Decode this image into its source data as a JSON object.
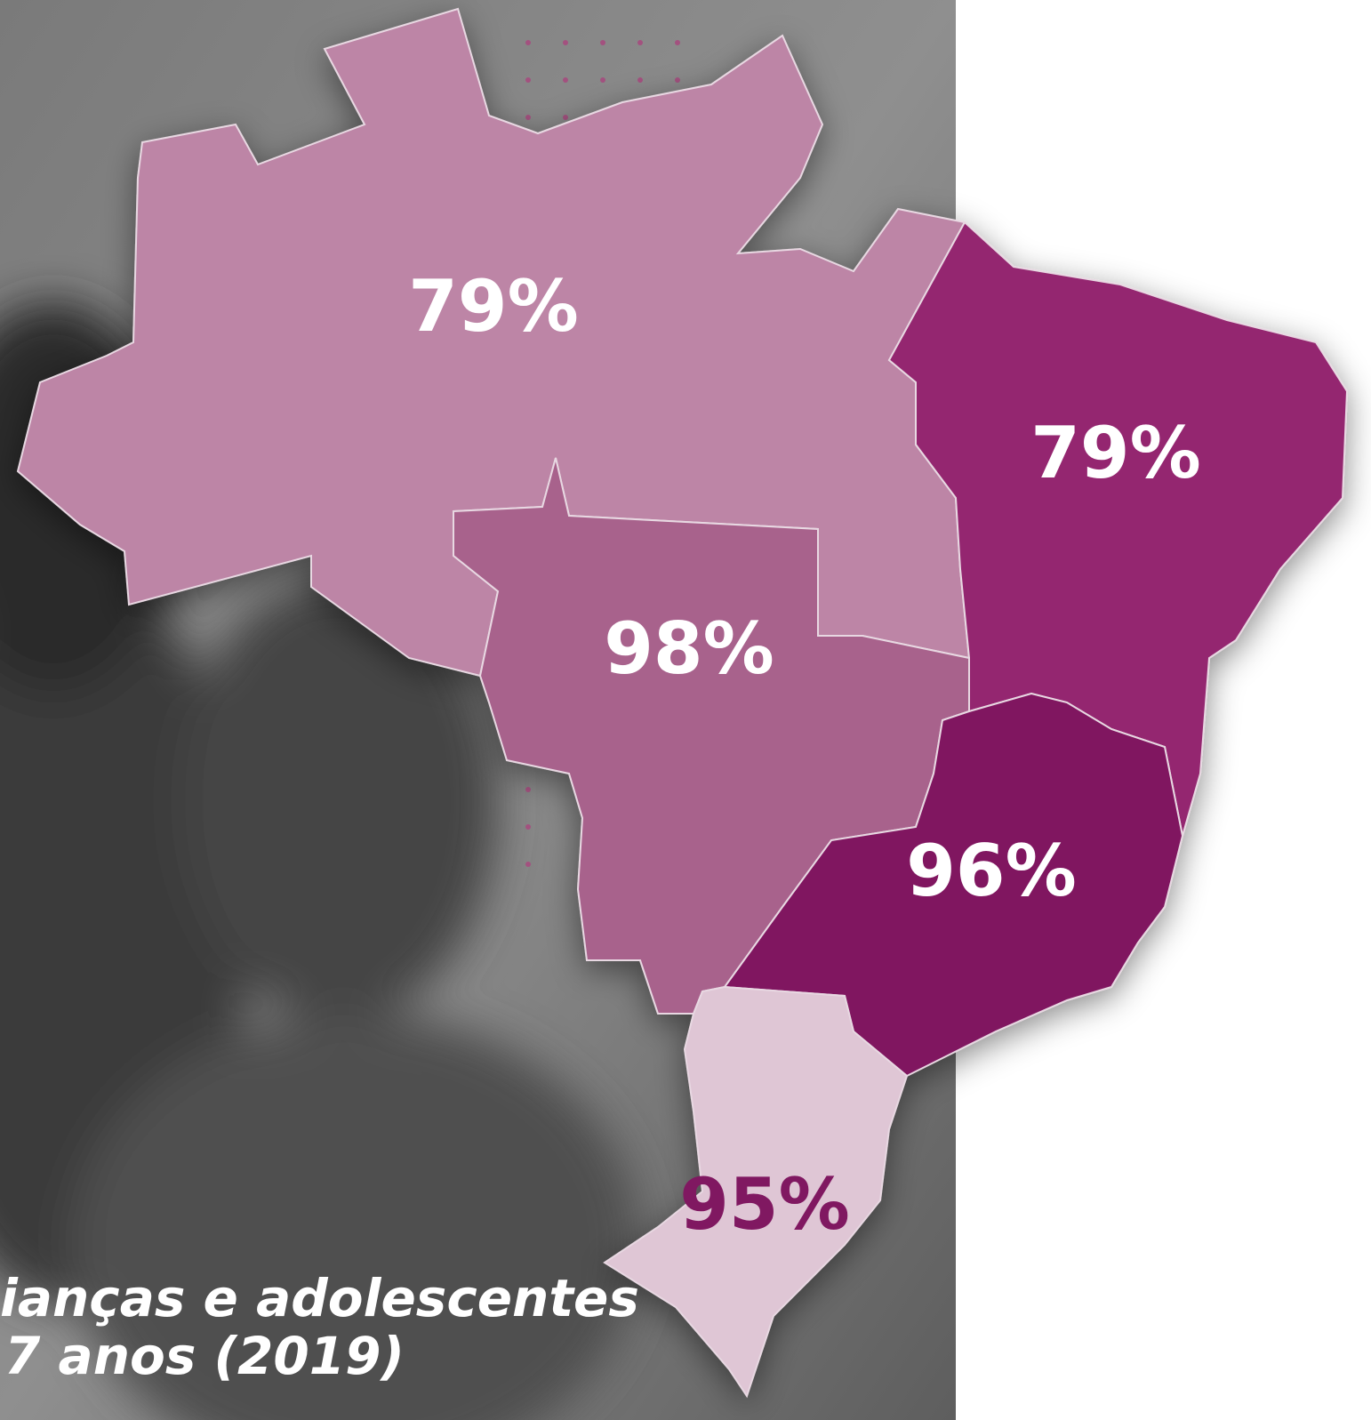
{
  "map": {
    "regions": [
      {
        "label": "79%",
        "color": "#bd85a6",
        "label_color": "#ffffff"
      },
      {
        "label": "79%",
        "color": "#94266f",
        "label_color": "#ffffff"
      },
      {
        "label": "98%",
        "color": "#a8628c",
        "label_color": "#ffffff"
      },
      {
        "label": "96%",
        "color": "#801861",
        "label_color": "#ffffff"
      },
      {
        "label": "95%",
        "color": "#dfc6d5",
        "label_color": "#801861"
      }
    ]
  },
  "caption": {
    "lines": [
      "ianças e adolescentes",
      "7 anos (2019)"
    ]
  }
}
